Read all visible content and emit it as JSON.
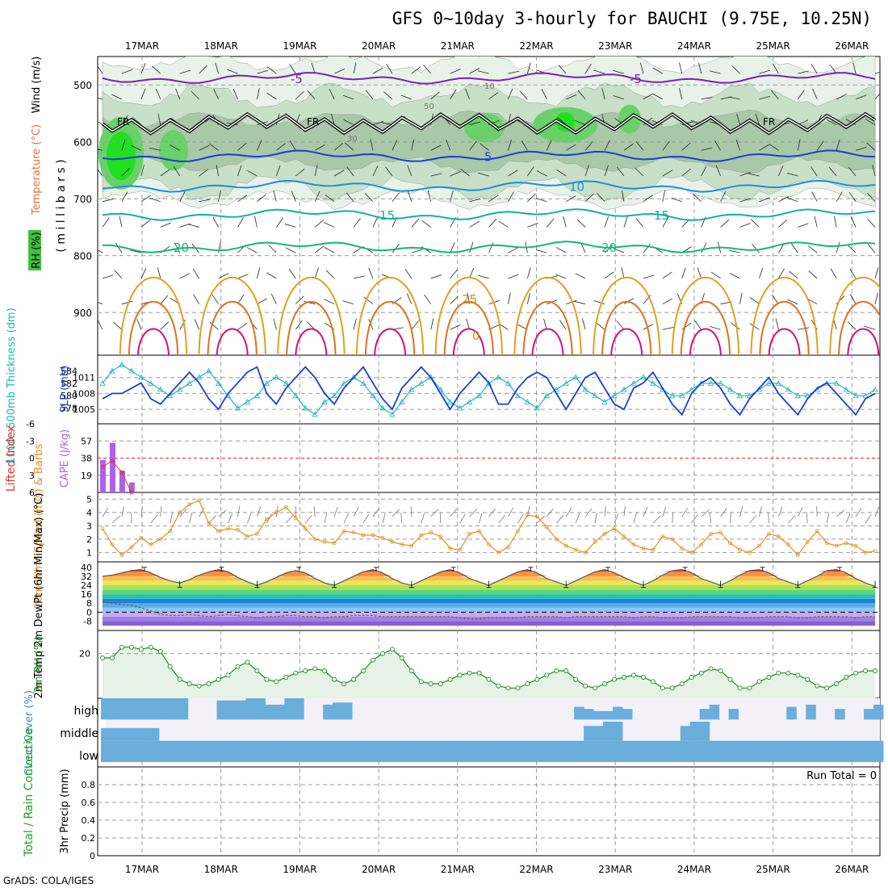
{
  "title": "GFS 0~10day 3-hourly for BAUCHI (9.75E, 10.25N)",
  "footer": "GrADS: COLA/IGES",
  "dates": [
    "17MAR",
    "18MAR",
    "19MAR",
    "20MAR",
    "21MAR",
    "22MAR",
    "23MAR",
    "24MAR",
    "25MAR",
    "26MAR"
  ],
  "chart_data": [
    {
      "type": "heatmap",
      "panel": "upper-air",
      "ylabel_parts": [
        "RH (%)",
        "Temperature (°C)",
        "Wind (m/s)"
      ],
      "yunit": "( m i l l i b a r s )",
      "y_ticks": [
        500,
        600,
        700,
        800,
        900
      ],
      "ylim": [
        450,
        975
      ],
      "temp_contours": [
        {
          "level": "-5",
          "pressure": 488,
          "color": "#7a1fb8"
        },
        {
          "level": "5",
          "pressure": 625,
          "color": "#1a3fd0"
        },
        {
          "level": "10",
          "pressure": 678,
          "color": "#1a8fe0"
        },
        {
          "level": "15",
          "pressure": 728,
          "color": "#14b0a0"
        },
        {
          "level": "20",
          "pressure": 785,
          "color": "#14b878"
        }
      ],
      "freezing_label": "FR",
      "freezing_pressure": 568,
      "rh_contour_labels": [
        "10",
        "30",
        "50"
      ],
      "surface_labels": [
        "25",
        "0"
      ]
    },
    {
      "type": "line",
      "panel": "thickness-slp",
      "ylabel_left": "1000~500mb Thickness (dm)",
      "ylabel_right": "SLP (mb)",
      "thickness_ticks": [
        578,
        580,
        582,
        584
      ],
      "slp_ticks": [
        1005,
        1008,
        1011
      ],
      "series": [
        {
          "name": "SLP",
          "color": "#1a3fd0",
          "values": [
            1007,
            1008,
            1008,
            1009,
            1010,
            1007,
            1006,
            1008,
            1010,
            1012,
            1010,
            1007,
            1005,
            1008,
            1010,
            1012,
            1013,
            1008,
            1006,
            1009,
            1011,
            1013,
            1011,
            1008,
            1006,
            1009,
            1011,
            1013,
            1010,
            1007,
            1005,
            1009,
            1011,
            1013,
            1011,
            1008,
            1005,
            1008,
            1010,
            1012,
            1010,
            1006,
            1006,
            1009,
            1011,
            1012,
            1011,
            1008,
            1005,
            1008,
            1011,
            1012,
            1009,
            1006,
            1005,
            1009,
            1010,
            1012,
            1009,
            1006,
            1004,
            1008,
            1010,
            1011,
            1009,
            1006,
            1004,
            1007,
            1009,
            1011,
            1008,
            1006,
            1004,
            1007,
            1009,
            1010,
            1008,
            1006,
            1004,
            1007,
            1008
          ]
        },
        {
          "name": "Thickness",
          "color": "#1cb4c4",
          "values": [
            582,
            584,
            585,
            584,
            583,
            582,
            581,
            580,
            581,
            582,
            583,
            584,
            582,
            580,
            578,
            579,
            580,
            582,
            583,
            582,
            580,
            578,
            577,
            579,
            580,
            582,
            583,
            582,
            580,
            578,
            577,
            579,
            581,
            582,
            583,
            581,
            579,
            578,
            579,
            580,
            582,
            583,
            582,
            580,
            579,
            578,
            580,
            581,
            582,
            583,
            581,
            580,
            579,
            580,
            581,
            582,
            583,
            582,
            581,
            580,
            580,
            581,
            582,
            582,
            582,
            581,
            580,
            580,
            581,
            582,
            582,
            581,
            580,
            580,
            581,
            582,
            582,
            581,
            580,
            580,
            581
          ]
        }
      ]
    },
    {
      "type": "bar",
      "panel": "cape-li",
      "ylabel_left": "Lifted Index",
      "ylabel_right": "CAPE (J/kg)",
      "li_ticks": [
        -6,
        -3,
        0,
        3,
        6
      ],
      "cape_ticks": [
        19,
        38,
        57
      ],
      "cape_values": [
        36,
        55,
        24,
        11
      ],
      "li_values": [
        1.5,
        0.5,
        2.5,
        6
      ]
    },
    {
      "type": "line",
      "panel": "wind10m",
      "ylabel": "10m Wind Speed (m/s) & Barbs",
      "y_ticks": [
        1,
        2,
        3,
        4,
        5
      ],
      "series": [
        {
          "name": "10m Wind",
          "color": "#e09020",
          "values": [
            2.8,
            1.6,
            0.8,
            1.4,
            2.1,
            1.6,
            2.0,
            2.6,
            4.0,
            4.6,
            4.9,
            3.2,
            2.6,
            2.8,
            2.7,
            2.2,
            2.4,
            3.5,
            4.0,
            4.4,
            3.6,
            2.8,
            2.0,
            1.8,
            1.7,
            2.6,
            2.5,
            2.3,
            2.3,
            2.1,
            1.8,
            1.6,
            1.5,
            2.3,
            2.5,
            2.2,
            1.3,
            1.2,
            2.4,
            2.6,
            1.6,
            1.0,
            1.4,
            2.6,
            3.8,
            3.7,
            2.9,
            2.0,
            1.5,
            1.2,
            1.0,
            1.8,
            2.4,
            2.8,
            2.2,
            1.6,
            1.3,
            1.2,
            2.2,
            2.0,
            1.3,
            1.0,
            1.6,
            2.4,
            2.5,
            1.7,
            1.2,
            1.0,
            1.5,
            2.4,
            2.2,
            1.6,
            0.8,
            1.8,
            2.6,
            1.7,
            1.5,
            1.7,
            1.5,
            1.0,
            1.1
          ]
        }
      ]
    },
    {
      "type": "area",
      "panel": "temp2m",
      "ylabel": "2m Temp 2m DewPt (6hr Min/Max) (°C)",
      "y_ticks": [
        -8,
        0,
        8,
        16,
        24,
        32,
        40
      ],
      "series": [
        {
          "name": "2m Temp",
          "values": [
            32,
            33,
            35,
            37,
            38,
            35,
            31,
            28,
            26,
            29,
            33,
            36,
            38,
            36,
            31,
            27,
            24,
            27,
            31,
            35,
            37,
            35,
            30,
            26,
            24,
            28,
            32,
            36,
            38,
            35,
            30,
            26,
            24,
            28,
            32,
            36,
            38,
            35,
            30,
            27,
            24,
            28,
            32,
            36,
            38,
            35,
            30,
            27,
            24,
            28,
            32,
            36,
            38,
            35,
            31,
            27,
            24,
            28,
            33,
            37,
            38,
            35,
            30,
            27,
            24,
            28,
            33,
            37,
            38,
            35,
            30,
            27,
            24,
            28,
            32,
            37,
            38,
            35,
            30,
            26,
            23
          ]
        },
        {
          "name": "2m DewPt",
          "values": [
            9,
            8,
            7,
            6,
            4,
            1,
            -2,
            -3,
            -3,
            -2,
            -3,
            -4,
            -3,
            -2,
            -3,
            -4,
            -5,
            -4,
            -4,
            -3,
            -3,
            -4,
            -4,
            -5,
            -4,
            -4,
            -3,
            -3,
            -3,
            -4,
            -4,
            -4,
            -4,
            -4,
            -4,
            -4,
            -4,
            -5,
            -6,
            -6,
            -5,
            -5,
            -5,
            -5,
            -4,
            -4,
            -4,
            -4,
            -5,
            -4,
            -4,
            -4,
            -4,
            -4,
            -4,
            -5,
            -4,
            -4,
            -5,
            -5,
            -5,
            -4,
            -4,
            -4,
            -4,
            -4,
            -5,
            -5,
            -5,
            -4,
            -4,
            -4,
            -5,
            -5,
            -4,
            -4,
            -4,
            -4,
            -5,
            -4,
            -4
          ]
        }
      ]
    },
    {
      "type": "line",
      "panel": "rh2m",
      "ylabel": "2m RH (%)",
      "y_ticks": [
        20
      ],
      "series": [
        {
          "name": "2m RH",
          "color": "#1a8a1a",
          "values": [
            18,
            18,
            23,
            23,
            22,
            23,
            21,
            14,
            8,
            6,
            5,
            6,
            8,
            10,
            14,
            16,
            12,
            8,
            7,
            9,
            11,
            12,
            13,
            12,
            8,
            6,
            8,
            12,
            17,
            20,
            22,
            18,
            12,
            7,
            6,
            6,
            8,
            10,
            11,
            11,
            8,
            5,
            4,
            4,
            6,
            8,
            10,
            12,
            12,
            8,
            5,
            4,
            6,
            8,
            9,
            10,
            9,
            7,
            4,
            4,
            6,
            9,
            11,
            13,
            12,
            8,
            4,
            4,
            7,
            9,
            11,
            11,
            10,
            8,
            5,
            4,
            6,
            9,
            11,
            12,
            12
          ]
        }
      ]
    },
    {
      "type": "bar",
      "panel": "cloud",
      "ylabel": "Cloud Cover (%)",
      "levels": [
        "high",
        "middle",
        "low"
      ],
      "series": [
        {
          "name": "high",
          "values": [
            100,
            100,
            100,
            100,
            100,
            100,
            100,
            100,
            100,
            0,
            0,
            0,
            90,
            90,
            90,
            100,
            100,
            70,
            70,
            100,
            100,
            0,
            0,
            70,
            80,
            80,
            0,
            0,
            0,
            0,
            0,
            0,
            0,
            0,
            0,
            0,
            0,
            0,
            0,
            0,
            0,
            0,
            0,
            0,
            0,
            0,
            0,
            0,
            0,
            60,
            50,
            40,
            40,
            60,
            50,
            0,
            0,
            0,
            0,
            0,
            0,
            0,
            50,
            70,
            0,
            50,
            0,
            0,
            0,
            0,
            0,
            60,
            0,
            70,
            0,
            0,
            50,
            0,
            0,
            50,
            70
          ]
        },
        {
          "name": "middle",
          "values": [
            60,
            60,
            60,
            60,
            60,
            60,
            0,
            0,
            0,
            0,
            0,
            0,
            0,
            0,
            0,
            0,
            0,
            0,
            0,
            0,
            0,
            0,
            0,
            0,
            0,
            0,
            0,
            0,
            0,
            0,
            0,
            0,
            0,
            0,
            0,
            0,
            0,
            0,
            0,
            0,
            0,
            0,
            0,
            0,
            0,
            0,
            0,
            0,
            0,
            0,
            70,
            70,
            90,
            90,
            0,
            0,
            0,
            0,
            0,
            0,
            70,
            90,
            90,
            0,
            0,
            0,
            0,
            0,
            0,
            0,
            0,
            0,
            0,
            0,
            0,
            0,
            0,
            0,
            0,
            0,
            0
          ]
        },
        {
          "name": "low",
          "values": [
            100,
            100,
            100,
            100,
            100,
            100,
            100,
            100,
            100,
            100,
            100,
            100,
            100,
            100,
            100,
            100,
            100,
            100,
            100,
            100,
            100,
            100,
            100,
            100,
            100,
            100,
            100,
            100,
            100,
            100,
            100,
            100,
            100,
            100,
            100,
            100,
            100,
            100,
            100,
            100,
            100,
            100,
            100,
            100,
            100,
            100,
            100,
            100,
            100,
            100,
            100,
            100,
            100,
            100,
            100,
            100,
            100,
            100,
            100,
            100,
            100,
            100,
            100,
            100,
            100,
            100,
            100,
            100,
            100,
            100,
            100,
            100,
            100,
            100,
            100,
            100,
            100,
            100,
            100,
            100,
            100
          ]
        }
      ]
    },
    {
      "type": "bar",
      "panel": "precip",
      "ylabel_left": "Total / Rain Convective",
      "ylabel": "3hr Precip (mm)",
      "y_ticks": [
        0,
        0.2,
        0.4,
        0.6,
        0.8
      ],
      "ylim": [
        0,
        1
      ],
      "run_total": "Run Total = 0",
      "values": []
    }
  ]
}
